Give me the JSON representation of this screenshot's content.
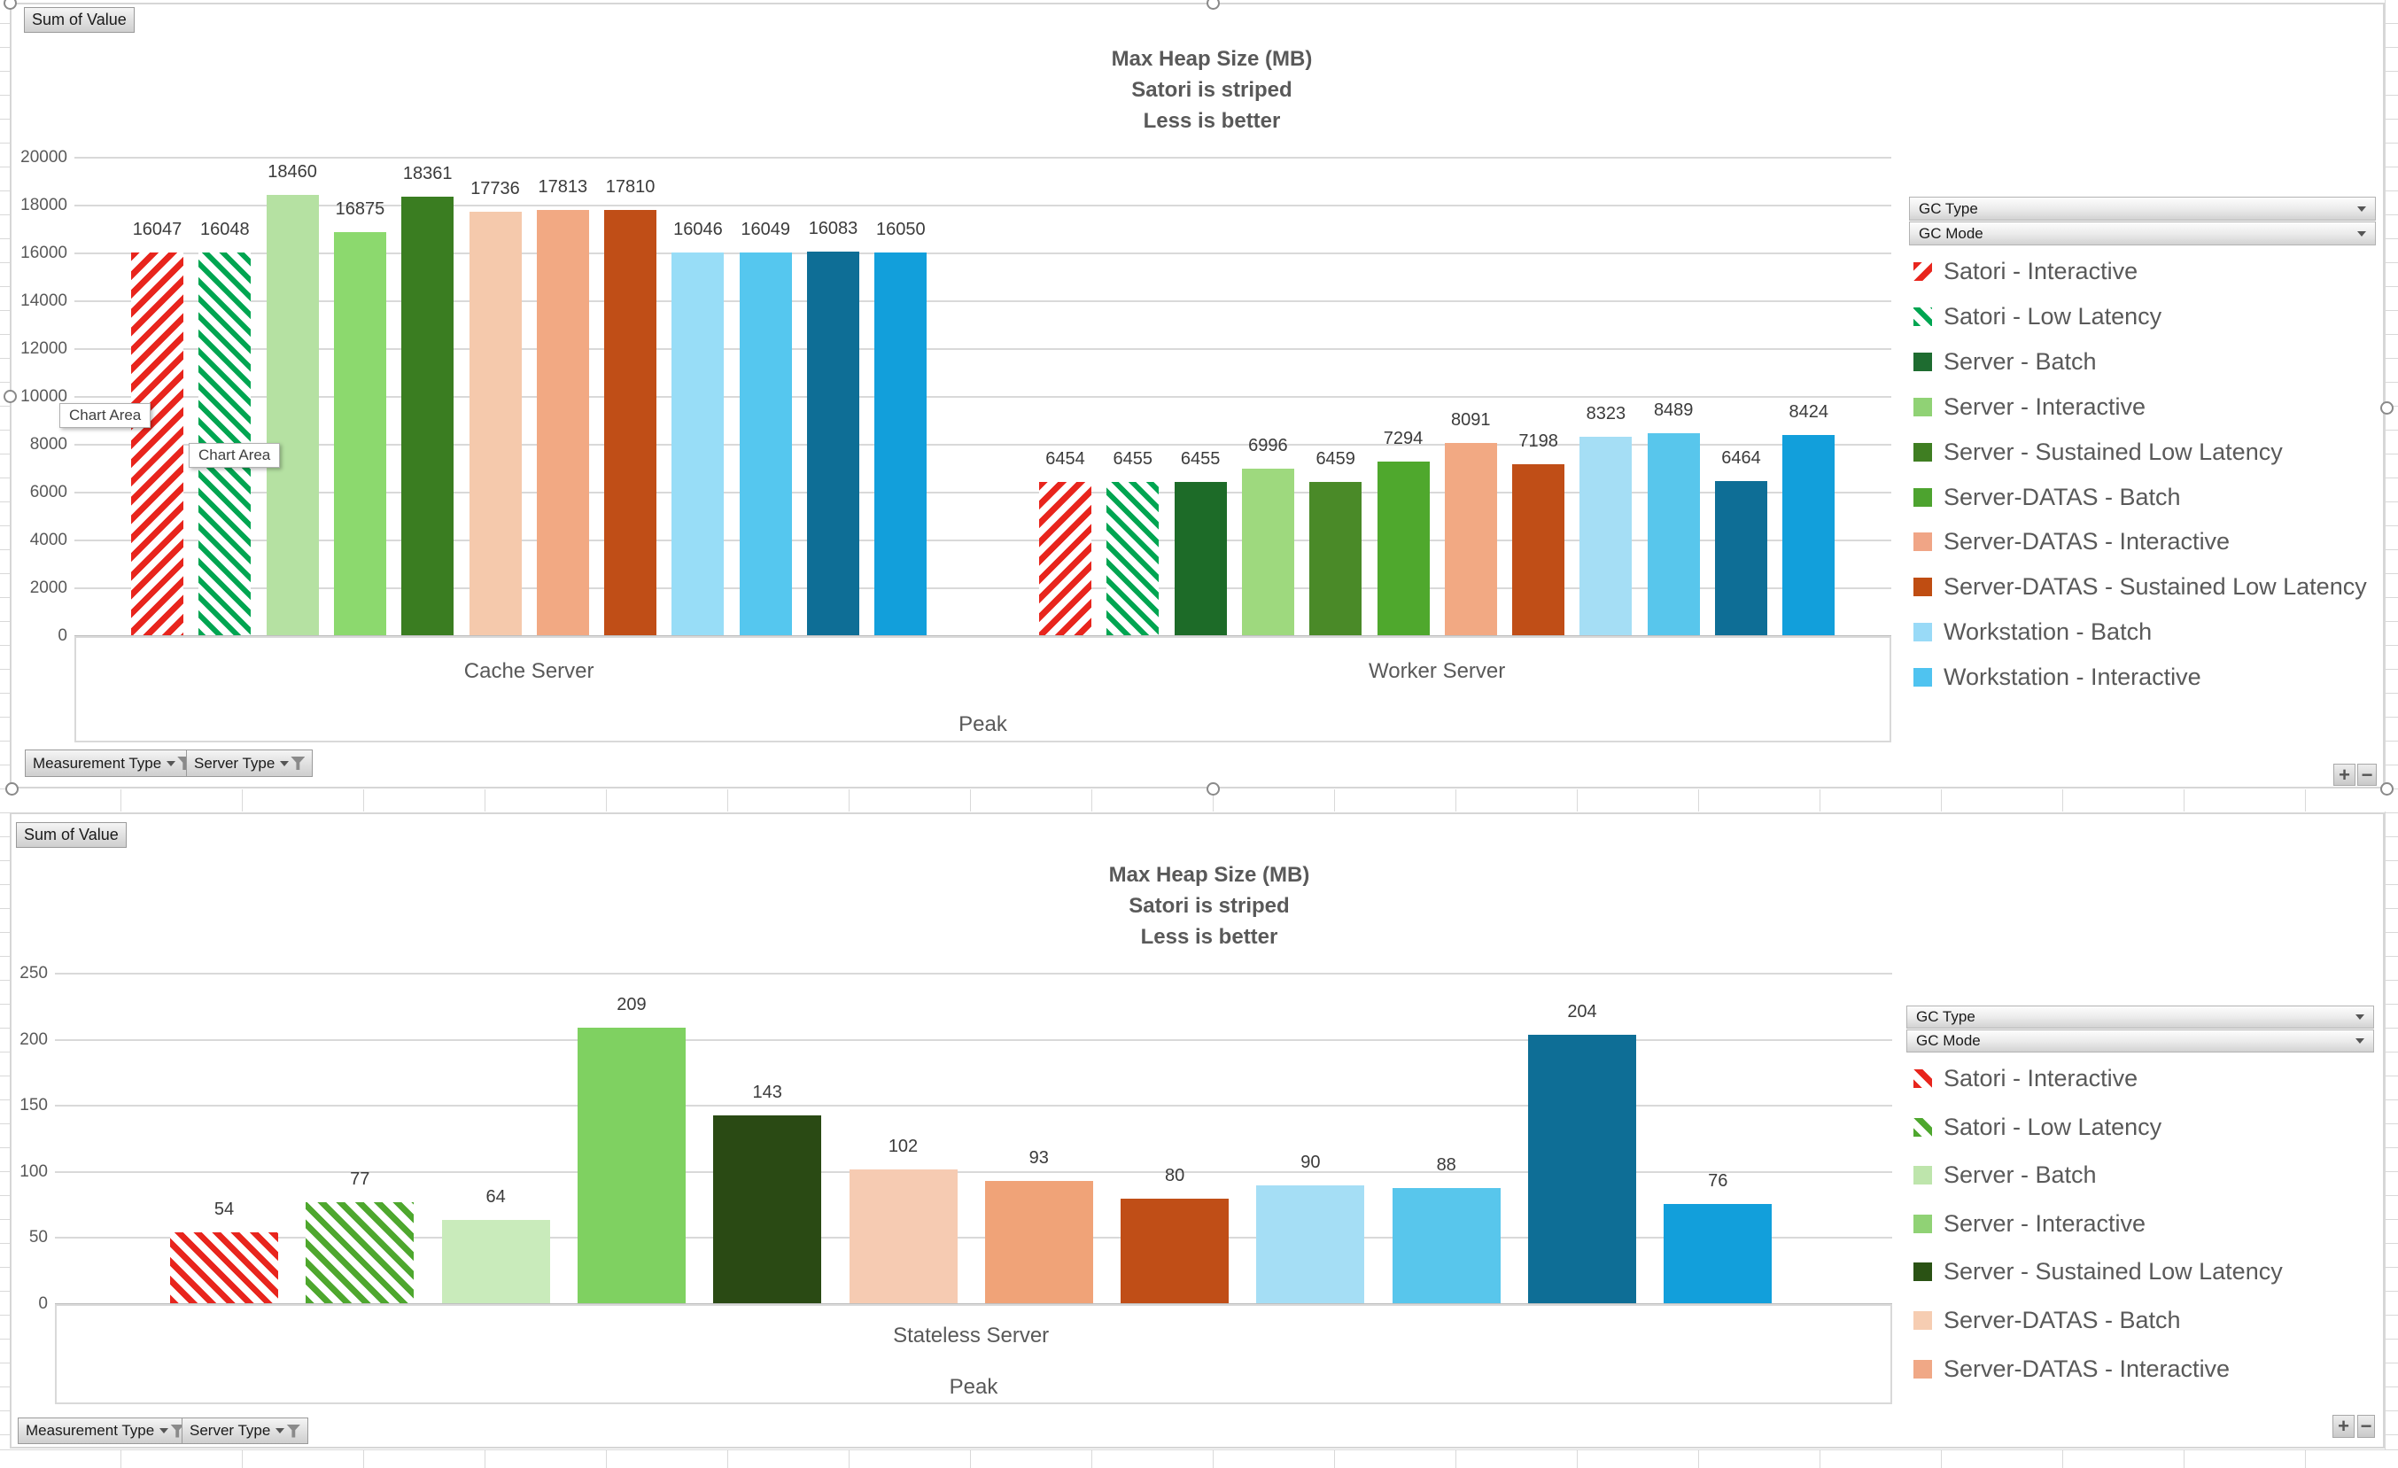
{
  "workbook": {
    "field_button": "Sum of Value",
    "legend_filter_buttons": [
      "GC Type",
      "GC Mode"
    ],
    "axis_filter_buttons": [
      "Measurement  Type",
      "Server Type"
    ],
    "zoom_in": "+",
    "zoom_out": "−",
    "tooltip": "Chart Area"
  },
  "chart_data": [
    {
      "type": "bar",
      "title": [
        "Max Heap Size (MB)",
        "Satori is striped",
        "Less is better"
      ],
      "ylim": [
        0,
        20000
      ],
      "y_ticks": [
        0,
        2000,
        4000,
        6000,
        8000,
        10000,
        12000,
        14000,
        16000,
        18000,
        20000
      ],
      "axis_level1": [
        "Cache Server",
        "Worker Server"
      ],
      "axis_level2": "Peak",
      "grid": true,
      "legend_position": "right",
      "palette": {
        "stripe_red": "#e8251d",
        "stripe_green": "#00a551"
      },
      "legend": [
        {
          "label": "Satori - Interactive",
          "swatch": "striped-red"
        },
        {
          "label": "Satori - Low Latency",
          "swatch": "striped-green"
        },
        {
          "label": "Server - Batch",
          "swatch": "#1e6c30"
        },
        {
          "label": "Server - Interactive",
          "swatch": "#90d275"
        },
        {
          "label": "Server - Sustained Low Latency",
          "swatch": "#3f7e22"
        },
        {
          "label": "Server-DATAS - Batch",
          "swatch": "#4da32f"
        },
        {
          "label": "Server-DATAS - Interactive",
          "swatch": "#f0a586"
        },
        {
          "label": "Server-DATAS - Sustained Low Latency",
          "swatch": "#bf4d12"
        },
        {
          "label": "Workstation - Batch",
          "swatch": "#99daf7"
        },
        {
          "label": "Workstation - Interactive",
          "swatch": "#4fc3f0"
        }
      ],
      "groups": [
        {
          "category": "Cache Server",
          "bars": [
            {
              "value": 16047,
              "fill": "striped-red"
            },
            {
              "value": 16048,
              "fill": "striped-green"
            },
            {
              "value": 18460,
              "fill": "#b5e1a2"
            },
            {
              "value": 16875,
              "fill": "#8cd96e"
            },
            {
              "value": 18361,
              "fill": "#3a7d21"
            },
            {
              "value": 17736,
              "fill": "#f5c9ac"
            },
            {
              "value": 17813,
              "fill": "#f2a983"
            },
            {
              "value": 17810,
              "fill": "#c04e17"
            },
            {
              "value": 16046,
              "fill": "#98ddf7"
            },
            {
              "value": 16049,
              "fill": "#55c7ef"
            },
            {
              "value": 16083,
              "fill": "#0e6e96"
            },
            {
              "value": 16050,
              "fill": "#129fdb"
            }
          ]
        },
        {
          "category": "Worker Server",
          "bars": [
            {
              "value": 6454,
              "fill": "striped-red"
            },
            {
              "value": 6455,
              "fill": "striped-green"
            },
            {
              "value": 6455,
              "fill": "#1d6b28"
            },
            {
              "value": 6996,
              "fill": "#9ed97e"
            },
            {
              "value": 6459,
              "fill": "#4a8a28"
            },
            {
              "value": 7294,
              "fill": "#4fa82d"
            },
            {
              "value": 8091,
              "fill": "#f2a983"
            },
            {
              "value": 7198,
              "fill": "#c04e17"
            },
            {
              "value": 8323,
              "fill": "#a5def5"
            },
            {
              "value": 8489,
              "fill": "#58c6ec"
            },
            {
              "value": 6464,
              "fill": "#0e6e96"
            },
            {
              "value": 8424,
              "fill": "#129fdb"
            }
          ]
        }
      ]
    },
    {
      "type": "bar",
      "title": [
        "Max Heap Size (MB)",
        "Satori is striped",
        "Less is better"
      ],
      "ylim": [
        0,
        250
      ],
      "y_ticks": [
        0,
        50,
        100,
        150,
        200,
        250
      ],
      "axis_level1": [
        "Stateless Server"
      ],
      "axis_level2": "Peak",
      "grid": true,
      "legend_position": "right",
      "palette": {
        "stripe_red": "#e8251d",
        "stripe_green": "#4ea72e"
      },
      "legend": [
        {
          "label": "Satori - Interactive",
          "swatch": "striped-red"
        },
        {
          "label": "Satori - Low Latency",
          "swatch": "striped-green"
        },
        {
          "label": "Server - Batch",
          "swatch": "#bee5ac"
        },
        {
          "label": "Server - Interactive",
          "swatch": "#90d275"
        },
        {
          "label": "Server - Sustained Low Latency",
          "swatch": "#2a5214"
        },
        {
          "label": "Server-DATAS - Batch",
          "swatch": "#f6cdb2"
        },
        {
          "label": "Server-DATAS - Interactive",
          "swatch": "#f0a886"
        }
      ],
      "groups": [
        {
          "category": "Stateless Server",
          "bars": [
            {
              "value": 54,
              "fill": "striped-red"
            },
            {
              "value": 77,
              "fill": "striped-green"
            },
            {
              "value": 64,
              "fill": "#c9ebbb"
            },
            {
              "value": 209,
              "fill": "#7fd161"
            },
            {
              "value": 143,
              "fill": "#2a4a14"
            },
            {
              "value": 102,
              "fill": "#f6cbb2"
            },
            {
              "value": 93,
              "fill": "#f0a378"
            },
            {
              "value": 80,
              "fill": "#c04e17"
            },
            {
              "value": 90,
              "fill": "#a5def5"
            },
            {
              "value": 88,
              "fill": "#58c6ec"
            },
            {
              "value": 204,
              "fill": "#0e6e96"
            },
            {
              "value": 76,
              "fill": "#129fdb"
            }
          ]
        }
      ]
    }
  ]
}
